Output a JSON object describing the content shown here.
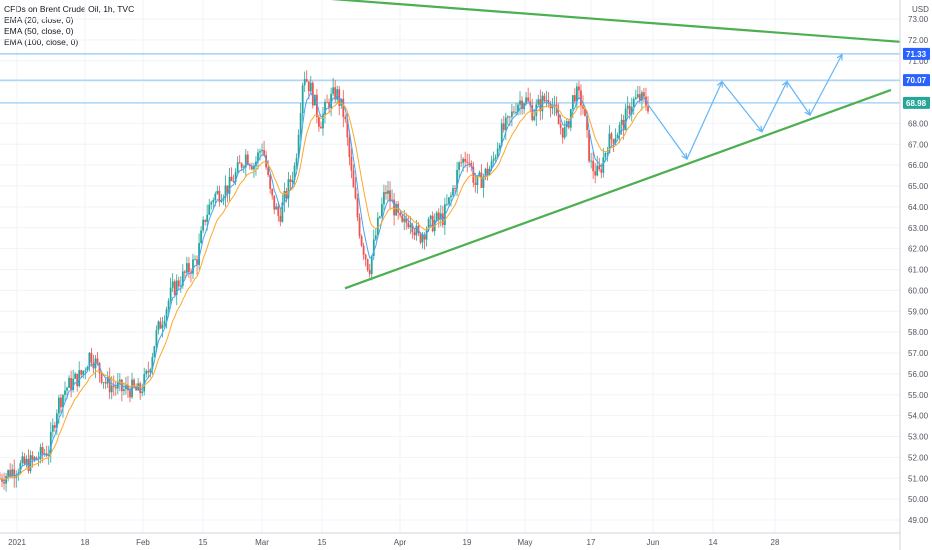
{
  "legend": {
    "title": "CFDs on Brent Crude Oil, 1h, TVC",
    "ema20": "EMA (20, close, 0)",
    "ema50": "EMA (50, close, 0)",
    "ema100": "EMA (100, close, 0)"
  },
  "currency": "USD",
  "colors": {
    "up": "#26a69a",
    "down": "#ef5350",
    "ema20": "#42a5f5",
    "ema50": "#ffa726",
    "trendline": "#4caf50",
    "hline": "#90caf9",
    "projection": "#64b5f6"
  },
  "chart_data": {
    "type": "candlestick",
    "y_range": [
      48.5,
      73.6
    ],
    "y_ticks": [
      "49.00",
      "50.00",
      "51.00",
      "52.00",
      "53.00",
      "54.00",
      "55.00",
      "56.00",
      "57.00",
      "58.00",
      "59.00",
      "60.00",
      "61.00",
      "62.00",
      "63.00",
      "64.00",
      "65.00",
      "66.00",
      "67.00",
      "68.00",
      "69.00",
      "70.00",
      "71.00",
      "72.00",
      "73.00"
    ],
    "x_ticks": [
      "2021",
      "18",
      "Feb",
      "15",
      "Mar",
      "15",
      "Apr",
      "19",
      "May",
      "17",
      "Jun",
      "14",
      "28"
    ],
    "price_levels": [
      "71.33",
      "70.07",
      "68.98"
    ],
    "price_path": [
      [
        0,
        51.0
      ],
      [
        2,
        51.5
      ],
      [
        4,
        51.8
      ],
      [
        6,
        52.4
      ],
      [
        7,
        54.5
      ],
      [
        8,
        55.3
      ],
      [
        10,
        56.0
      ],
      [
        11,
        57.0
      ],
      [
        13,
        55.5
      ],
      [
        14,
        55.4
      ],
      [
        15,
        55.2
      ],
      [
        16,
        55.3
      ],
      [
        17,
        55.1
      ],
      [
        18,
        56.0
      ],
      [
        19,
        57.8
      ],
      [
        21,
        60.0
      ],
      [
        23,
        61.0
      ],
      [
        24,
        61.5
      ],
      [
        25,
        63.5
      ],
      [
        26,
        64.5
      ],
      [
        28,
        65.0
      ],
      [
        30,
        66.5
      ],
      [
        31,
        66.0
      ],
      [
        32,
        67.0
      ],
      [
        33,
        64.5
      ],
      [
        34,
        63.5
      ],
      [
        36,
        66.0
      ],
      [
        37,
        70.5
      ],
      [
        38,
        69.5
      ],
      [
        39,
        68.0
      ],
      [
        40,
        69.0
      ],
      [
        41,
        69.5
      ],
      [
        42,
        68.3
      ],
      [
        43,
        65.0
      ],
      [
        44,
        62.5
      ],
      [
        45,
        61.0
      ],
      [
        46,
        63.0
      ],
      [
        47,
        64.8
      ],
      [
        48,
        64.0
      ],
      [
        49,
        63.0
      ],
      [
        50,
        63.5
      ],
      [
        51,
        62.5
      ],
      [
        52,
        63.0
      ],
      [
        53,
        63.3
      ],
      [
        54,
        63.5
      ],
      [
        55,
        64.5
      ],
      [
        56,
        66.0
      ],
      [
        57,
        66.5
      ],
      [
        58,
        65.0
      ],
      [
        59,
        65.5
      ],
      [
        60,
        66.0
      ],
      [
        61,
        67.5
      ],
      [
        62,
        68.0
      ],
      [
        63,
        69.0
      ],
      [
        64,
        69.2
      ],
      [
        65,
        68.5
      ],
      [
        66,
        69.0
      ],
      [
        67,
        69.3
      ],
      [
        68,
        68.0
      ],
      [
        69,
        67.5
      ],
      [
        70,
        69.5
      ],
      [
        71,
        69.0
      ],
      [
        72,
        66.0
      ],
      [
        73,
        65.5
      ],
      [
        74,
        67.0
      ],
      [
        75,
        67.5
      ],
      [
        76,
        68.0
      ],
      [
        77,
        69.0
      ],
      [
        78,
        69.2
      ],
      [
        79,
        68.9
      ]
    ],
    "resistance_line": {
      "from": [
        "Mar 1",
        74.0
      ],
      "to": [
        "Jul",
        71.9
      ]
    },
    "support_line": {
      "from": [
        "Mar 22",
        60.1
      ],
      "to": [
        "Jul",
        69.6
      ]
    },
    "projection_path": [
      68.9,
      66.3,
      70.0,
      67.6,
      70.0,
      68.4,
      71.3
    ]
  }
}
